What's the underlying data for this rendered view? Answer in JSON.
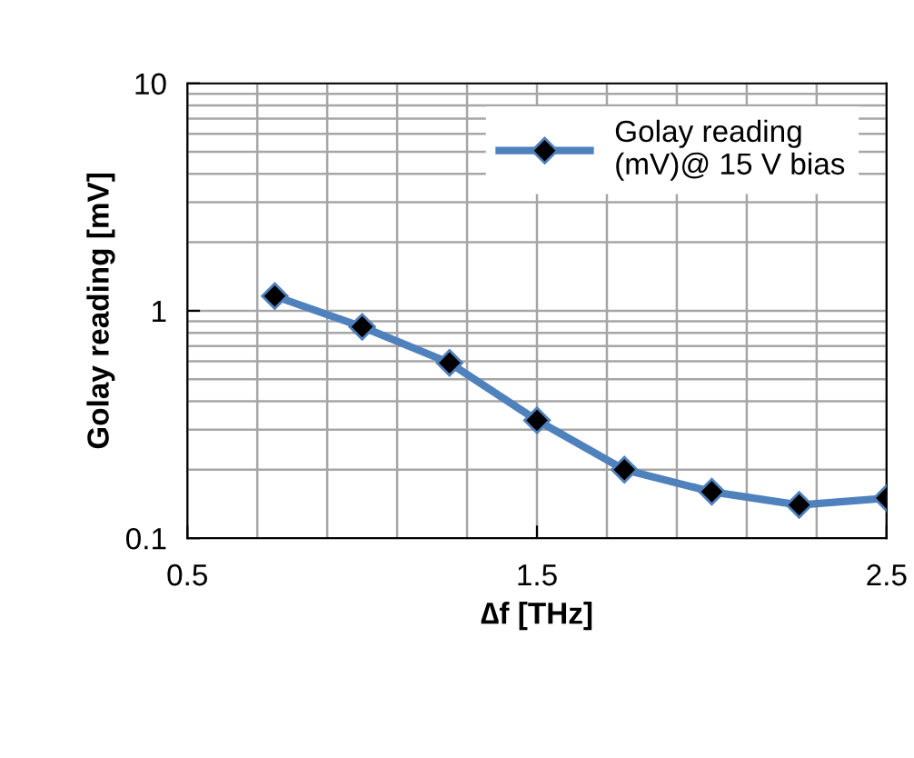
{
  "chart_data": {
    "type": "line",
    "xlabel": "∆f [THz]",
    "ylabel": "Golay reading [mV]",
    "x": [
      0.75,
      1.0,
      1.25,
      1.5,
      1.75,
      2.0,
      2.25,
      2.5
    ],
    "series": [
      {
        "name": "Golay reading\n(mV)@ 15 V bias",
        "color": "#4f81bd",
        "values": [
          1.16,
          0.85,
          0.59,
          0.33,
          0.2,
          0.16,
          0.14,
          0.15
        ]
      }
    ],
    "log": "y",
    "xlim": [
      0.5,
      2.5
    ],
    "xticks": [
      0.5,
      1.5,
      2.5
    ],
    "ylim": [
      0.1,
      10
    ],
    "yticks": [
      0.1,
      1,
      10
    ],
    "grid": true,
    "legend": "top right",
    "marker": "diamond",
    "line_style": "solid"
  }
}
